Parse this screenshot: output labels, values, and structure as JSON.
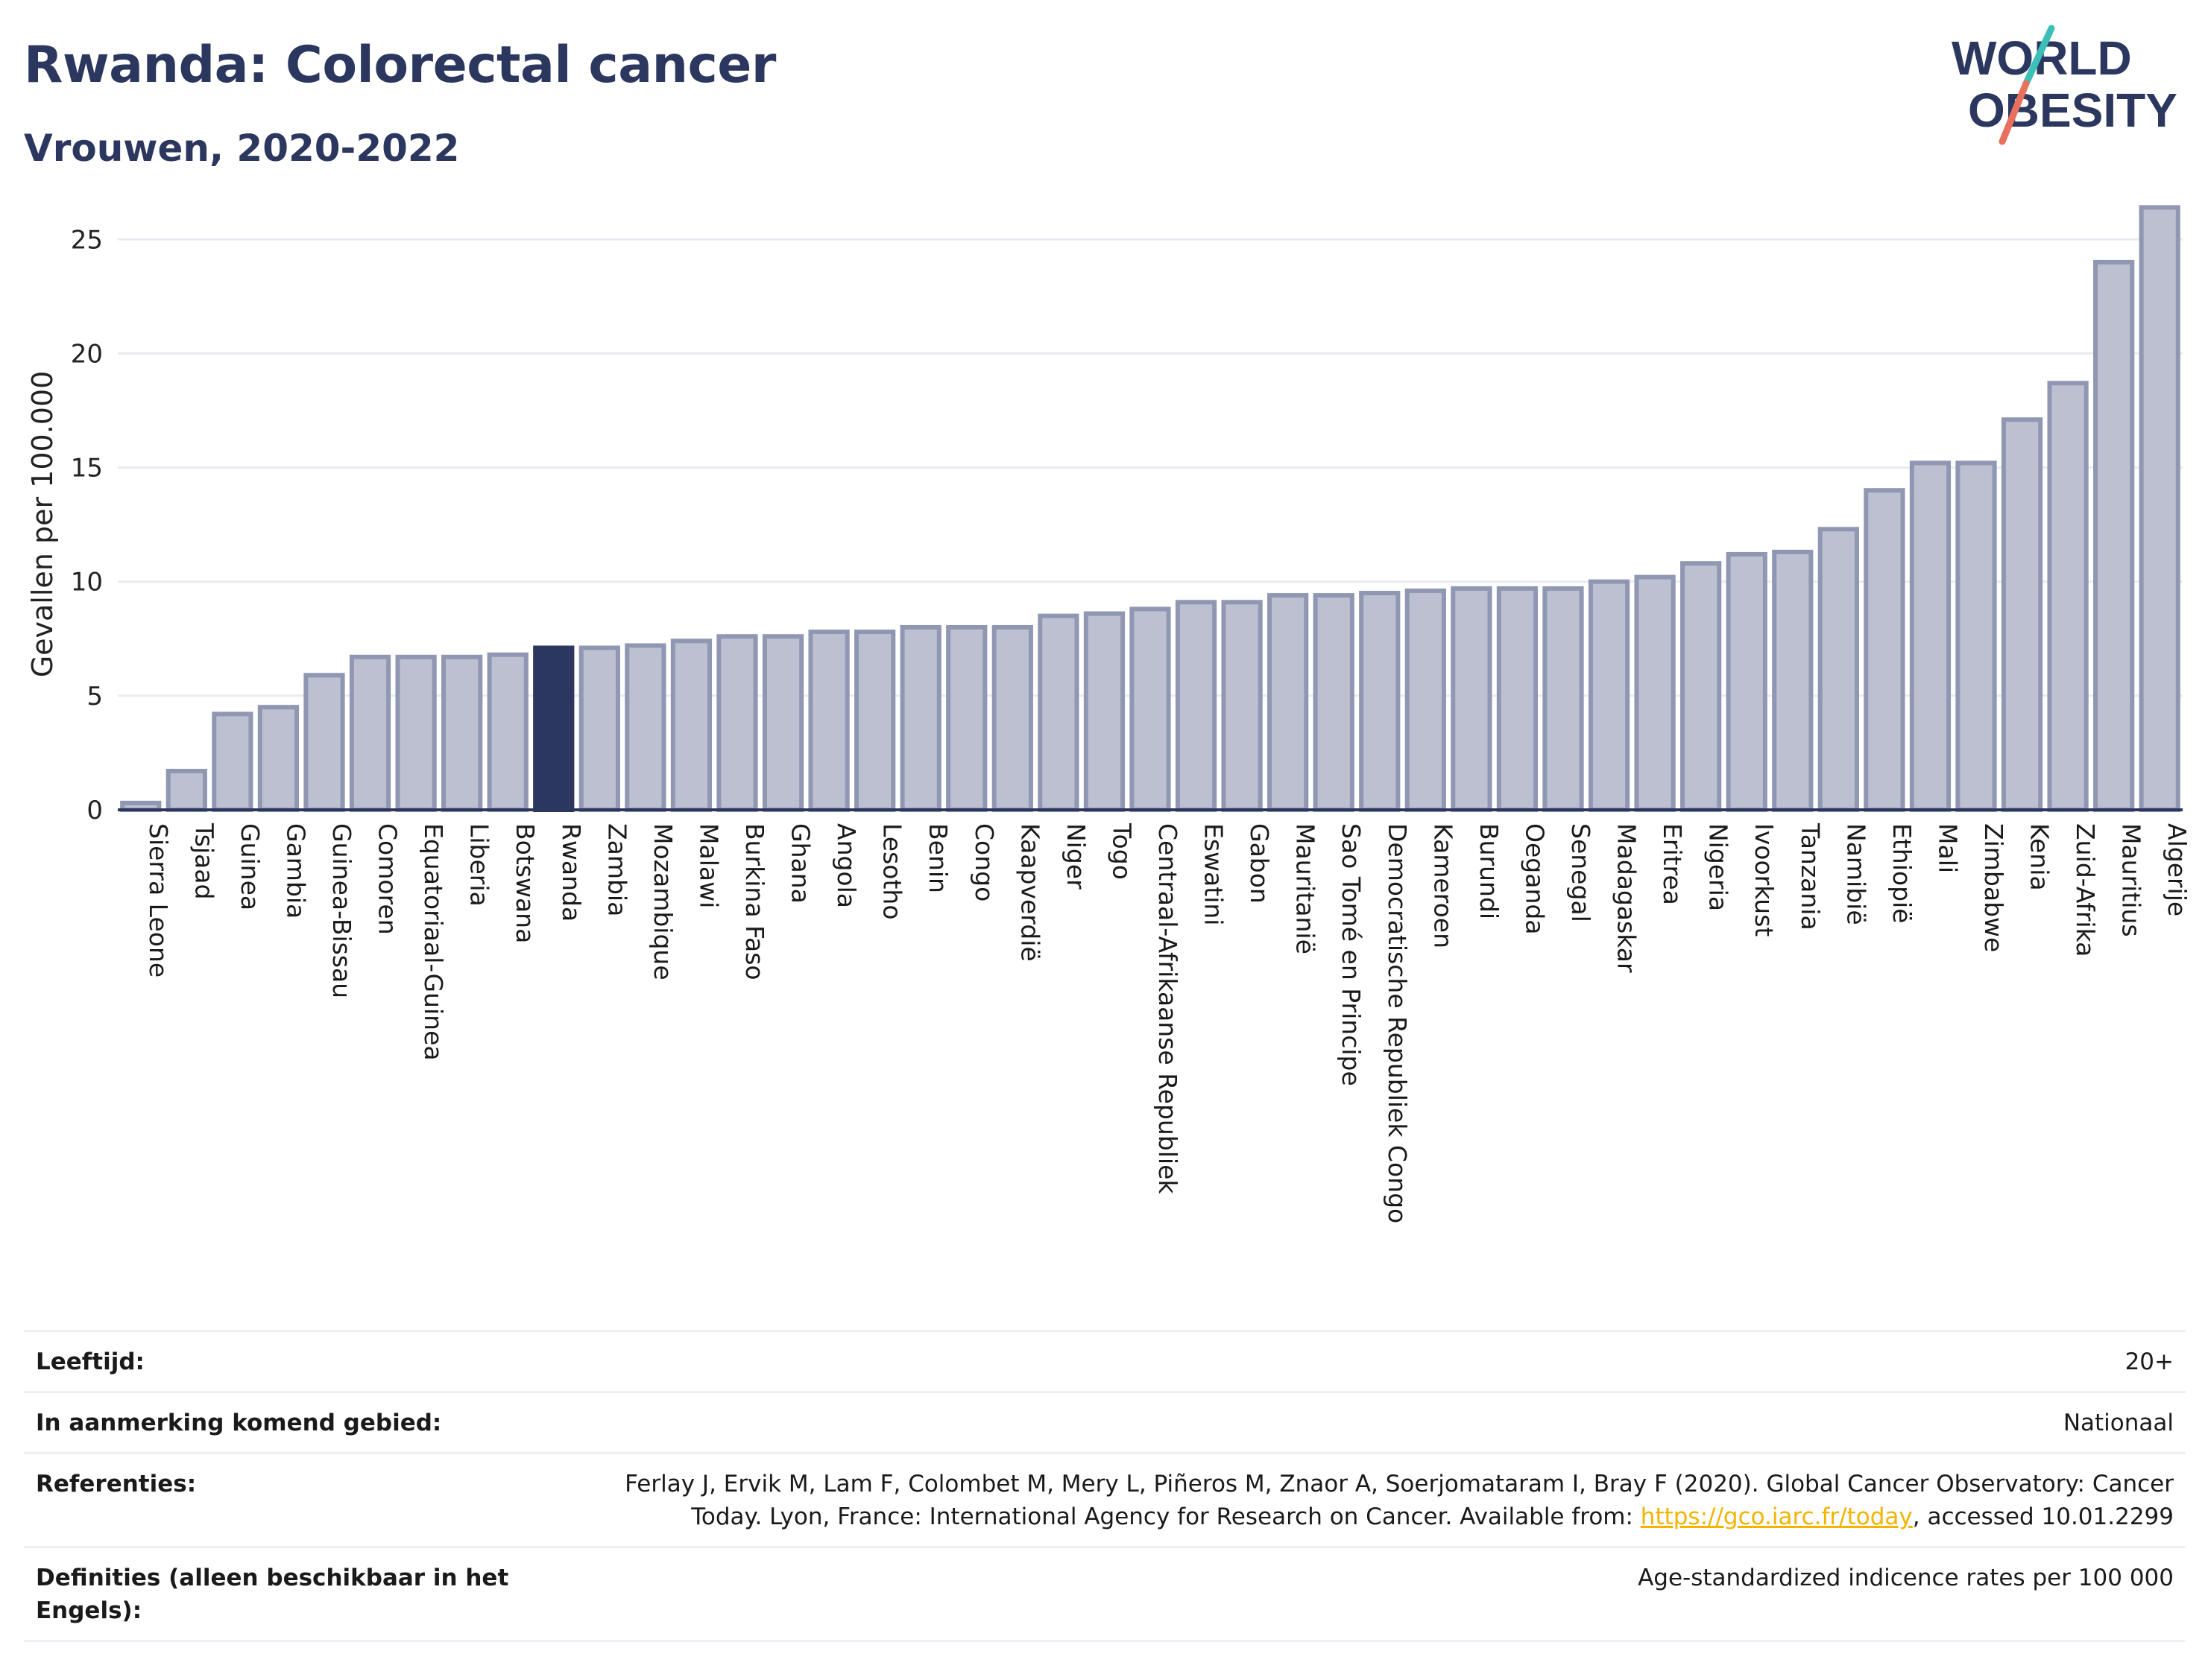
{
  "header": {
    "title": "Rwanda: Colorectal cancer",
    "subtitle": "Vrouwen, 2020-2022"
  },
  "logo": {
    "line1": "WORLD",
    "line2": "OBESITY",
    "color_navy": "#2b375f",
    "color_teal": "#3bbfb6",
    "color_coral": "#e8705c"
  },
  "chart_data": {
    "type": "bar",
    "ylabel": "Gevallen per 100.000",
    "xlabel": "",
    "ylim": [
      0,
      27
    ],
    "yticks": [
      0,
      5,
      10,
      15,
      20,
      25
    ],
    "grid": true,
    "highlight": "Rwanda",
    "colors": {
      "bar": "#bcc0d0",
      "bar_edge": "#8f97b2",
      "highlight": "#2b375f"
    },
    "categories": [
      "Sierra Leone",
      "Tsjaad",
      "Guinea",
      "Gambia",
      "Guinea-Bissau",
      "Comoren",
      "Equatoriaal-Guinea",
      "Liberia",
      "Botswana",
      "Rwanda",
      "Zambia",
      "Mozambique",
      "Malawi",
      "Burkina Faso",
      "Ghana",
      "Angola",
      "Lesotho",
      "Benin",
      "Congo",
      "Kaapverdië",
      "Niger",
      "Togo",
      "Centraal-Afrikaanse Republiek",
      "Eswatini",
      "Gabon",
      "Mauritanië",
      "Sao Tomé en Principe",
      "Democratische Republiek Congo",
      "Kameroen",
      "Burundi",
      "Oeganda",
      "Senegal",
      "Madagaskar",
      "Eritrea",
      "Nigeria",
      "Ivoorkust",
      "Tanzania",
      "Namibië",
      "Ethiopië",
      "Mali",
      "Zimbabwe",
      "Kenia",
      "Zuid-Afrika",
      "Mauritius",
      "Algerije"
    ],
    "values": [
      0.3,
      1.7,
      4.2,
      4.5,
      5.9,
      6.7,
      6.7,
      6.7,
      6.8,
      7.1,
      7.1,
      7.2,
      7.4,
      7.6,
      7.6,
      7.8,
      7.8,
      8.0,
      8.0,
      8.0,
      8.5,
      8.6,
      8.8,
      9.1,
      9.1,
      9.4,
      9.4,
      9.5,
      9.6,
      9.7,
      9.7,
      9.7,
      10.0,
      10.2,
      10.8,
      11.2,
      11.3,
      12.3,
      14.0,
      15.2,
      15.2,
      17.1,
      18.7,
      24.0,
      26.4
    ]
  },
  "info": {
    "rows": [
      {
        "label": "Leeftijd:",
        "value": "20+"
      },
      {
        "label": "In aanmerking komend gebied:",
        "value": "Nationaal"
      },
      {
        "label": "Referenties:",
        "value_pre": "Ferlay J, Ervik M, Lam F, Colombet M, Mery L, Piñeros M, Znaor A, Soerjomataram I, Bray F (2020). Global Cancer Observatory: Cancer Today. Lyon, France: International Agency for Research on Cancer. Available from: ",
        "link": "https://gco.iarc.fr/today",
        "value_post": ", accessed 10.01.2299"
      },
      {
        "label": "Definities (alleen beschikbaar in het Engels):",
        "value": "Age-standardized indicence rates per 100 000"
      }
    ]
  }
}
